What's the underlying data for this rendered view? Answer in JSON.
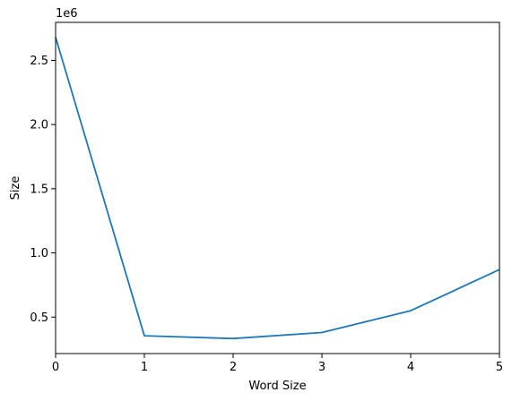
{
  "chart_data": {
    "type": "line",
    "title": "",
    "xlabel": "Word Size",
    "ylabel": "Size",
    "y_offset_label": "1e6",
    "x": [
      0,
      1,
      2,
      3,
      4,
      5
    ],
    "series": [
      {
        "values": [
          2680000,
          355000,
          333000,
          380000,
          550000,
          870000
        ],
        "color": "#1f77b4"
      }
    ],
    "xlim": [
      0,
      5
    ],
    "ylim": [
      216000,
      2796000
    ],
    "x_ticks": [
      0,
      1,
      2,
      3,
      4,
      5
    ],
    "x_tick_labels": [
      "0",
      "1",
      "2",
      "3",
      "4",
      "5"
    ],
    "y_ticks": [
      500000,
      1000000,
      1500000,
      2000000,
      2500000
    ],
    "y_tick_labels": [
      "0.5",
      "1.0",
      "1.5",
      "2.0",
      "2.5"
    ],
    "grid": false,
    "legend": "none"
  }
}
